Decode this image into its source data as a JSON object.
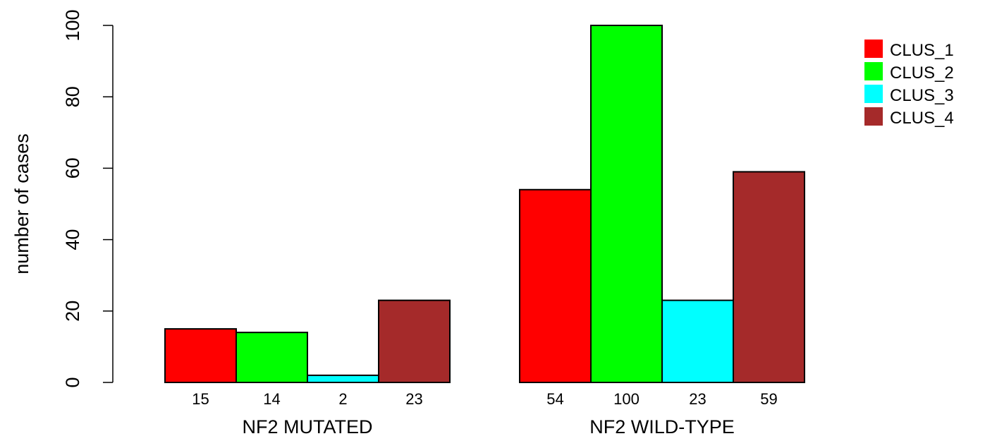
{
  "chart_data": {
    "type": "bar",
    "ylabel": "number of cases",
    "ylim": [
      0,
      100
    ],
    "yticks": [
      0,
      20,
      40,
      60,
      80,
      100
    ],
    "groups": [
      "NF2 MUTATED",
      "NF2 WILD-TYPE"
    ],
    "series": [
      {
        "name": "CLUS_1",
        "color": "#ff0000",
        "values": [
          15,
          54
        ]
      },
      {
        "name": "CLUS_2",
        "color": "#00ff00",
        "values": [
          14,
          100
        ]
      },
      {
        "name": "CLUS_3",
        "color": "#00ffff",
        "values": [
          2,
          23
        ]
      },
      {
        "name": "CLUS_4",
        "color": "#a52a2a",
        "values": [
          23,
          59
        ]
      }
    ],
    "bar_value_labels": [
      [
        "15",
        "14",
        "2",
        "23"
      ],
      [
        "54",
        "100",
        "23",
        "59"
      ]
    ],
    "legend_position": "top-right",
    "grid": false
  }
}
